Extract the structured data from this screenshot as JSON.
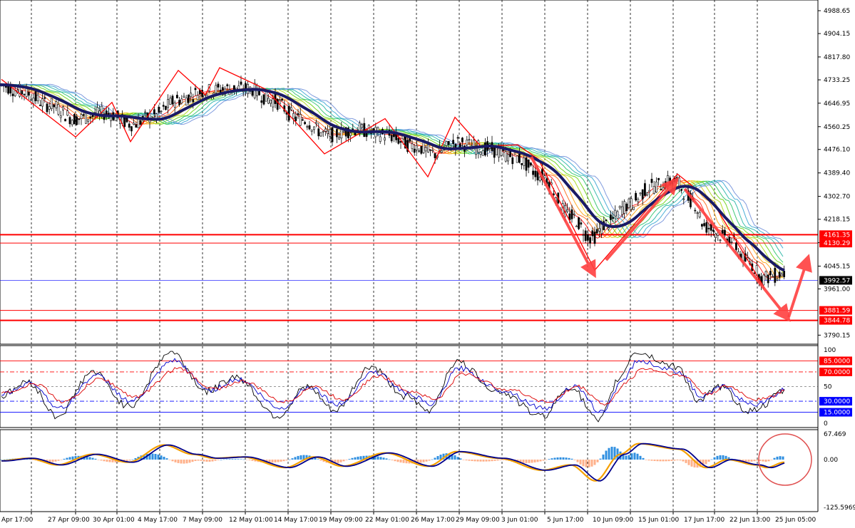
{
  "chart_data": [
    {
      "type": "candlestick",
      "panel": "price",
      "y_ticks": [
        "4988.65",
        "4904.15",
        "4817.80",
        "4733.25",
        "4646.95",
        "4560.25",
        "4476.10",
        "4389.40",
        "4302.70",
        "4218.15",
        "4131.75",
        "4045.15",
        "3961.00",
        "3790.15"
      ],
      "y_tick_values": [
        4988.65,
        4904.15,
        4817.8,
        4733.25,
        4646.95,
        4560.25,
        4476.1,
        4389.4,
        4302.7,
        4218.15,
        4131.75,
        4045.15,
        3961.0,
        3790.15
      ],
      "ylim": [
        3770,
        5015
      ],
      "current_price": {
        "label": "3992.57",
        "value": 3992.57
      },
      "horizontal_lines": [
        {
          "label": "4161.35",
          "value": 4161.35,
          "color": "#ff0000"
        },
        {
          "label": "4130.29",
          "value": 4130.29,
          "color": "#ff0000"
        },
        {
          "label": "3881.59",
          "value": 3881.59,
          "color": "#ff0000"
        },
        {
          "label": "3844.78",
          "value": 3844.78,
          "color": "#ff0000"
        }
      ],
      "zigzag_points": [
        {
          "x": "Apr 17:00",
          "y": 4760
        },
        {
          "x": "27 Apr 09:00",
          "y": 4520
        },
        {
          "x": "30 Apr 01:00",
          "y": 4670
        },
        {
          "x": "4 May 17:00",
          "y": 4505
        },
        {
          "x": "7 May 09:00",
          "y": 4770
        },
        {
          "x": "12 May 01:00",
          "y": 4675
        },
        {
          "x": "12 May 01:00",
          "y": 4780
        },
        {
          "x": "14 May 17:00",
          "y": 4700
        },
        {
          "x": "19 May 09:00",
          "y": 4460
        },
        {
          "x": "22 May 01:00",
          "y": 4590
        },
        {
          "x": "26 May 17:00",
          "y": 4370
        },
        {
          "x": "29 May 09:00",
          "y": 4590
        },
        {
          "x": "3 Jun 01:00",
          "y": 4440
        },
        {
          "x": "5 Jun 17:00",
          "y": 4490
        },
        {
          "x": "10 Jun 09:00",
          "y": 4030
        },
        {
          "x": "15 Jun 01:00",
          "y": 4390
        },
        {
          "x": "17 Jun 17:00",
          "y": 4380
        },
        {
          "x": "25 Jun 05:00",
          "y": 3970
        }
      ]
    },
    {
      "type": "line",
      "panel": "oscillator",
      "y_ticks": [
        "100",
        "50",
        "0"
      ],
      "y_tick_values": [
        100,
        50,
        0
      ],
      "ylim": [
        0,
        100
      ],
      "levels": [
        {
          "label": "85.0000",
          "value": 85,
          "color": "#ff0000",
          "style": "solid"
        },
        {
          "label": "70.0000",
          "value": 70,
          "color": "#ff0000",
          "style": "dashed"
        },
        {
          "label": "30.0000",
          "value": 30,
          "color": "#0000ff",
          "style": "dashed"
        },
        {
          "label": "15.0000",
          "value": 15,
          "color": "#0000ff",
          "style": "solid"
        }
      ]
    },
    {
      "type": "histogram",
      "panel": "macd",
      "y_ticks": [
        "67.469",
        "0.00",
        "-125.5969"
      ],
      "y_tick_values": [
        67.469,
        0,
        -125.5969
      ],
      "ylim": [
        -125.5969,
        67.469
      ]
    }
  ],
  "x_axis": {
    "labels": [
      "Apr 17:00",
      "27 Apr 09:00",
      "30 Apr 01:00",
      "4 May 17:00",
      "7 May 09:00",
      "12 May 01:00",
      "14 May 17:00",
      "19 May 09:00",
      "22 May 01:00",
      "26 May 17:00",
      "29 May 09:00",
      "3 Jun 01:00",
      "5 Jun 17:00",
      "10 Jun 09:00",
      "15 Jun 01:00",
      "17 Jun 17:00",
      "22 Jun 13:00",
      "25 Jun 05:00"
    ]
  },
  "colors": {
    "candle": "#000000",
    "zigzag": "#ff0000",
    "arrow": "#ff4040",
    "slow_ma": "#1a1a66",
    "current_line": "#0000ff",
    "hist_up": "#2f8fe0",
    "hist_down": "#ffb08a",
    "macd_line": "#f5a000",
    "signal_line": "#00008b",
    "circle": "#e05050"
  }
}
